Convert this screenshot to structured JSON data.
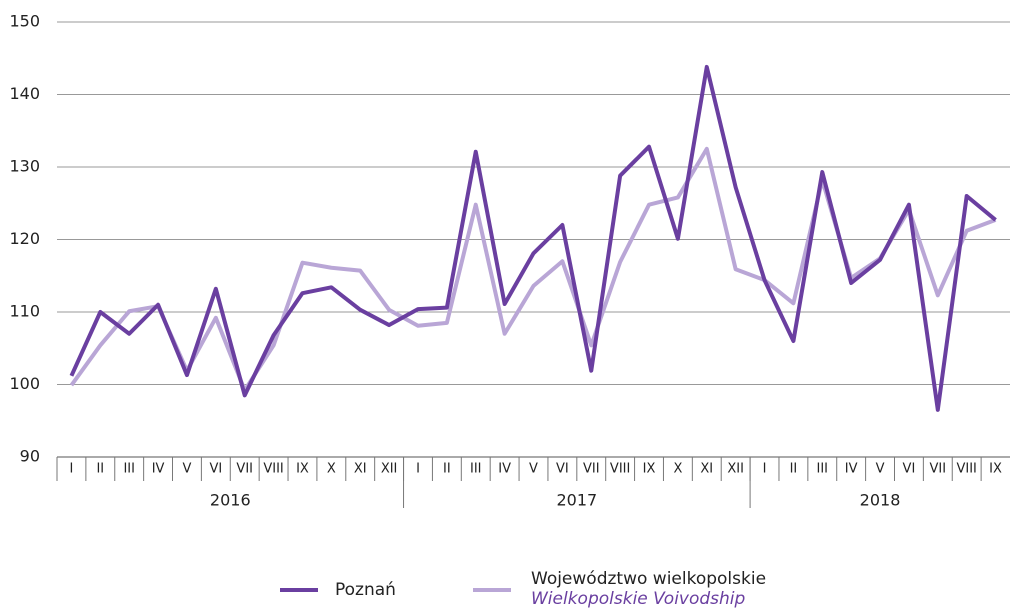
{
  "chart_data": {
    "type": "line",
    "categories": [
      "I",
      "II",
      "III",
      "IV",
      "V",
      "VI",
      "VII",
      "VIII",
      "IX",
      "X",
      "XI",
      "XII",
      "I",
      "II",
      "III",
      "IV",
      "V",
      "VI",
      "VII",
      "VIII",
      "IX",
      "X",
      "XI",
      "XII",
      "I",
      "II",
      "III",
      "IV",
      "V",
      "VI",
      "VII",
      "VIII",
      "IX"
    ],
    "groups": [
      {
        "label": "2016",
        "count": 12
      },
      {
        "label": "2017",
        "count": 12
      },
      {
        "label": "2018",
        "count": 9
      }
    ],
    "series": [
      {
        "name": "Województwo wielkopolskie",
        "name_translation": "Wielkopolskie Voivodship",
        "color": "#b9a6d6",
        "values": [
          99.9,
          105.4,
          110.1,
          110.8,
          101.9,
          109.2,
          99.2,
          105.4,
          116.8,
          116.1,
          115.7,
          110.3,
          108.1,
          108.5,
          124.8,
          107,
          113.6,
          117,
          105.4,
          116.9,
          124.8,
          125.8,
          132.5,
          115.9,
          114.4,
          111.2,
          128.2,
          114.7,
          117.4,
          124.1,
          112.3,
          121.2,
          122.7
        ]
      },
      {
        "name": "Poznań",
        "color": "#6a3fa0",
        "values": [
          101.2,
          110,
          107,
          111,
          101.3,
          113.2,
          98.5,
          106.8,
          112.6,
          113.4,
          110.3,
          108.2,
          110.4,
          110.6,
          132.1,
          111.1,
          118.1,
          122,
          101.9,
          128.8,
          132.8,
          120.1,
          143.8,
          127.2,
          114.4,
          106,
          129.3,
          114,
          117.2,
          124.8,
          96.5,
          126,
          122.7
        ]
      }
    ],
    "ylim": [
      90,
      150
    ],
    "yticks": [
      90,
      100,
      110,
      120,
      130,
      140,
      150
    ],
    "grid": true,
    "legend": "bottom"
  }
}
